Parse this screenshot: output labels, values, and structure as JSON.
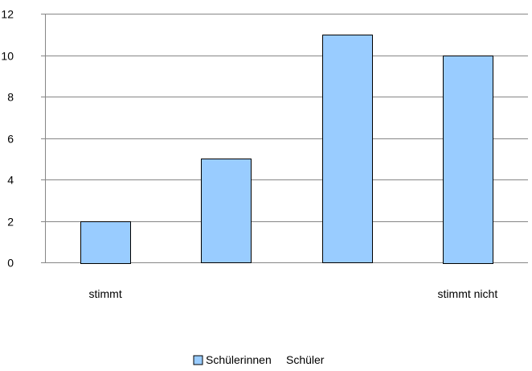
{
  "chart_data": {
    "type": "bar",
    "categories": [
      "stimmt",
      "",
      "",
      "stimmt nicht"
    ],
    "series": [
      {
        "name": "Schülerinnen",
        "values": [
          2,
          5,
          11,
          10
        ]
      },
      {
        "name": "Schüler",
        "values": [
          null,
          null,
          null,
          null
        ]
      }
    ],
    "ylim": [
      0,
      12
    ],
    "yticks": [
      0,
      2,
      4,
      6,
      8,
      10,
      12
    ],
    "grid": true,
    "legend": "bottom",
    "colors": {
      "bar_fill": "#99ccff",
      "bar_stroke": "#000000",
      "grid": "#868686",
      "axis": "#868686"
    }
  }
}
